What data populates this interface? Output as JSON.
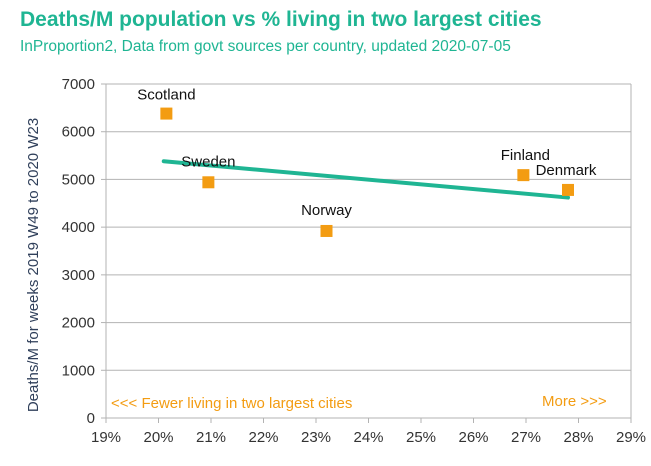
{
  "title": "Deaths/M population vs % living in two largest cities",
  "subtitle": "InProportion2, Data from govt sources per country, updated 2020-07-05",
  "colors": {
    "title": "#1fb593",
    "trendline": "#1fb593",
    "marker": "#f39c12",
    "annotation": "#f39c12",
    "grid": "#b3b3b3"
  },
  "annotations": {
    "left": "<<< Fewer living in two largest cities",
    "right": "More >>>"
  },
  "chart_data": {
    "type": "scatter",
    "ylabel": "Deaths/M for weeks 2019 W49 to 2020 W23",
    "xlabel": "",
    "xlim": [
      19,
      29
    ],
    "ylim": [
      0,
      7000
    ],
    "x_ticks": [
      19,
      20,
      21,
      22,
      23,
      24,
      25,
      26,
      27,
      28,
      29
    ],
    "x_tick_labels": [
      "19%",
      "20%",
      "21%",
      "22%",
      "23%",
      "24%",
      "25%",
      "26%",
      "27%",
      "28%",
      "29%"
    ],
    "y_ticks": [
      0,
      1000,
      2000,
      3000,
      4000,
      5000,
      6000,
      7000
    ],
    "y_tick_labels": [
      "0",
      "1000",
      "2000",
      "3000",
      "4000",
      "5000",
      "6000",
      "7000"
    ],
    "grid": "horizontal",
    "points": [
      {
        "label": "Scotland",
        "x": 20.15,
        "y": 6380
      },
      {
        "label": "Sweden",
        "x": 20.95,
        "y": 4940
      },
      {
        "label": "Norway",
        "x": 23.2,
        "y": 3920
      },
      {
        "label": "Finland",
        "x": 26.95,
        "y": 5090
      },
      {
        "label": "Denmark",
        "x": 27.8,
        "y": 4780
      }
    ],
    "trendline": {
      "x": [
        20.1,
        27.8
      ],
      "y": [
        5380,
        4620
      ]
    }
  }
}
